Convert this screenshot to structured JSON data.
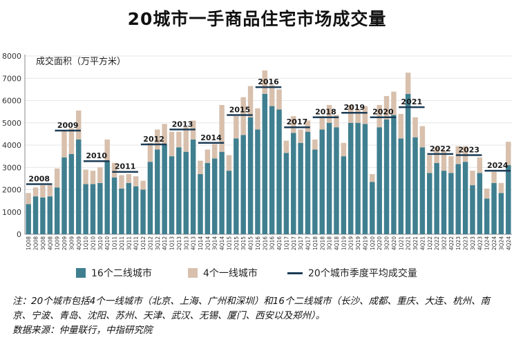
{
  "title": "20城市一手商品住宅市场成交量",
  "colors": {
    "tier2": "#3f7f8f",
    "tier1": "#d8c0ad",
    "avg_line": "#1b3b55",
    "axis": "#888888",
    "grid": "#e6e6e6"
  },
  "chart_data": {
    "type": "bar",
    "stacked": true,
    "ylabel": "成交面积（万平方米）",
    "ylim": [
      0,
      8000
    ],
    "yticks": [
      0,
      1000,
      2000,
      3000,
      4000,
      5000,
      6000,
      7000,
      8000
    ],
    "ytick_labels": [
      "0",
      "1000",
      "2000",
      "3000",
      "4000",
      "5000",
      "6000",
      "7000",
      "8000"
    ],
    "categories": [
      "1Q08",
      "2Q08",
      "3Q08",
      "4Q08",
      "1Q09",
      "2Q09",
      "3Q09",
      "4Q09",
      "1Q10",
      "2Q10",
      "3Q10",
      "4Q10",
      "1Q11",
      "2Q11",
      "3Q11",
      "4Q11",
      "1Q12",
      "2Q12",
      "3Q12",
      "4Q12",
      "1Q13",
      "2Q13",
      "3Q13",
      "4Q13",
      "1Q14",
      "2Q14",
      "3Q14",
      "4Q14",
      "1Q15",
      "2Q15",
      "3Q15",
      "4Q15",
      "1Q16",
      "2Q16",
      "3Q16",
      "4Q16",
      "1Q17",
      "2Q17",
      "3Q17",
      "4Q17",
      "1Q18",
      "2Q18",
      "3Q18",
      "4Q18",
      "1Q19",
      "2Q19",
      "3Q19",
      "4Q19",
      "1Q20",
      "2Q20",
      "3Q20",
      "4Q20",
      "1Q21",
      "2Q21",
      "3Q21",
      "4Q21",
      "1Q22",
      "2Q22",
      "3Q22",
      "4Q22",
      "1Q23",
      "2Q23",
      "3Q23",
      "4Q23",
      "1Q24",
      "2Q24",
      "3Q24",
      "4Q24"
    ],
    "series": [
      {
        "name": "16个二线城市",
        "values": [
          1350,
          1700,
          1650,
          1700,
          2100,
          3450,
          3600,
          4250,
          2250,
          2250,
          2300,
          3300,
          2550,
          2050,
          2300,
          2150,
          2000,
          3250,
          3800,
          4000,
          3500,
          3900,
          3700,
          4250,
          2700,
          3200,
          3400,
          3700,
          2850,
          4300,
          4450,
          5250,
          4700,
          6300,
          5750,
          5600,
          3650,
          4550,
          4100,
          4600,
          3800,
          4700,
          5000,
          4800,
          3500,
          5000,
          5000,
          4950,
          2350,
          4800,
          5150,
          5350,
          4300,
          6300,
          4350,
          3900,
          2750,
          3200,
          2850,
          2750,
          3150,
          3250,
          2200,
          2750,
          1600,
          2300,
          1850,
          3100
        ]
      },
      {
        "name": "4个一线城市",
        "values": [
          500,
          400,
          550,
          500,
          850,
          1200,
          1150,
          1300,
          650,
          600,
          700,
          950,
          650,
          600,
          400,
          450,
          400,
          850,
          900,
          950,
          1100,
          700,
          1100,
          850,
          600,
          600,
          650,
          2100,
          700,
          1000,
          1700,
          1400,
          950,
          1050,
          950,
          900,
          550,
          750,
          600,
          500,
          450,
          600,
          800,
          550,
          600,
          800,
          600,
          800,
          350,
          1000,
          1050,
          1050,
          1100,
          950,
          900,
          950,
          800,
          700,
          900,
          750,
          800,
          700,
          650,
          700,
          450,
          500,
          450,
          1050
        ]
      },
      {
        "name": "20个城市季度平均成交量",
        "type": "line",
        "annual": [
          {
            "year": "2008",
            "value": 2250
          },
          {
            "year": "2009",
            "value": 4650
          },
          {
            "year": "2010",
            "value": 3280
          },
          {
            "year": "2011",
            "value": 2800
          },
          {
            "year": "2012",
            "value": 4030
          },
          {
            "year": "2013",
            "value": 4700
          },
          {
            "year": "2014",
            "value": 4100
          },
          {
            "year": "2015",
            "value": 5350
          },
          {
            "year": "2016",
            "value": 6600
          },
          {
            "year": "2017",
            "value": 4800
          },
          {
            "year": "2018",
            "value": 5250
          },
          {
            "year": "2019",
            "value": 5450
          },
          {
            "year": "2020",
            "value": 5250
          },
          {
            "year": "2021",
            "value": 5700
          },
          {
            "year": "2022",
            "value": 3600
          },
          {
            "year": "2023",
            "value": 3550
          },
          {
            "year": "2024",
            "value": 2850
          }
        ]
      }
    ]
  },
  "legend": {
    "tier2": "16个二线城市",
    "tier1": "4个一线城市",
    "avg": "20个城市季度平均成交量"
  },
  "note": "注：20个城市包括4个一线城市（北京、上海、广州和深圳）和16个二线城市（长沙、成都、重庆、大连、杭州、南京、宁波、青岛、沈阳、苏州、天津、武汉、无锡、厦门、西安以及郑州）。",
  "source": "数据来源：仲量联行，中指研究院"
}
